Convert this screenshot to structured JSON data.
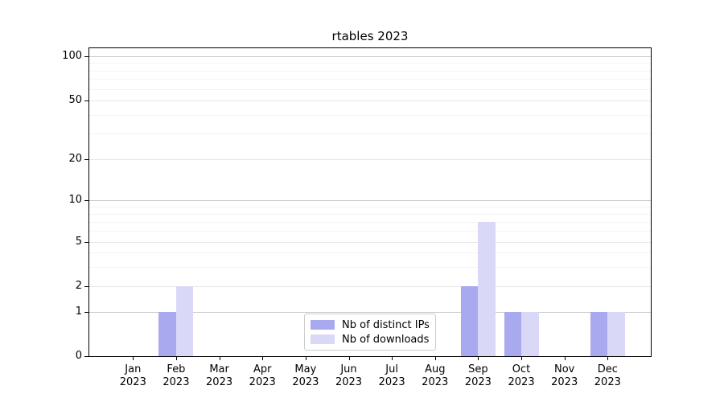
{
  "title": "rtables 2023",
  "chart_data": {
    "type": "bar",
    "title": "rtables 2023",
    "categories": [
      "Jan",
      "Feb",
      "Mar",
      "Apr",
      "May",
      "Jun",
      "Jul",
      "Aug",
      "Sep",
      "Oct",
      "Nov",
      "Dec"
    ],
    "category_year": "2023",
    "series": [
      {
        "name": "Nb of distinct IPs",
        "color": "#a9a9f0",
        "values": [
          0,
          1,
          0,
          0,
          0,
          0,
          0,
          0,
          2,
          1,
          0,
          1
        ]
      },
      {
        "name": "Nb of downloads",
        "color": "#d9d9f7",
        "values": [
          0,
          2,
          0,
          0,
          0,
          0,
          0,
          0,
          7,
          1,
          0,
          1
        ]
      }
    ],
    "y_axis": {
      "scale": "log-like",
      "tick_values": [
        0,
        1,
        2,
        5,
        10,
        20,
        50,
        100
      ],
      "major_grid_values": [
        1,
        10,
        100
      ],
      "mid_grid_values": [
        2,
        5,
        20,
        50
      ],
      "minor_grid_values": [
        3,
        4,
        6,
        7,
        8,
        9,
        30,
        40,
        60,
        70,
        80,
        90
      ]
    },
    "xlabel": "",
    "ylabel": "",
    "grid": true,
    "legend_position": "bottom-center"
  },
  "colors": {
    "bar_distinct_ips": "#a9a9f0",
    "bar_downloads": "#d9d9f7",
    "grid_major": "#c9c9c9",
    "grid_mid": "#e6e6e6",
    "grid_minor": "#f3f3f3",
    "axis": "#000000",
    "legend_border": "#cccccc"
  }
}
